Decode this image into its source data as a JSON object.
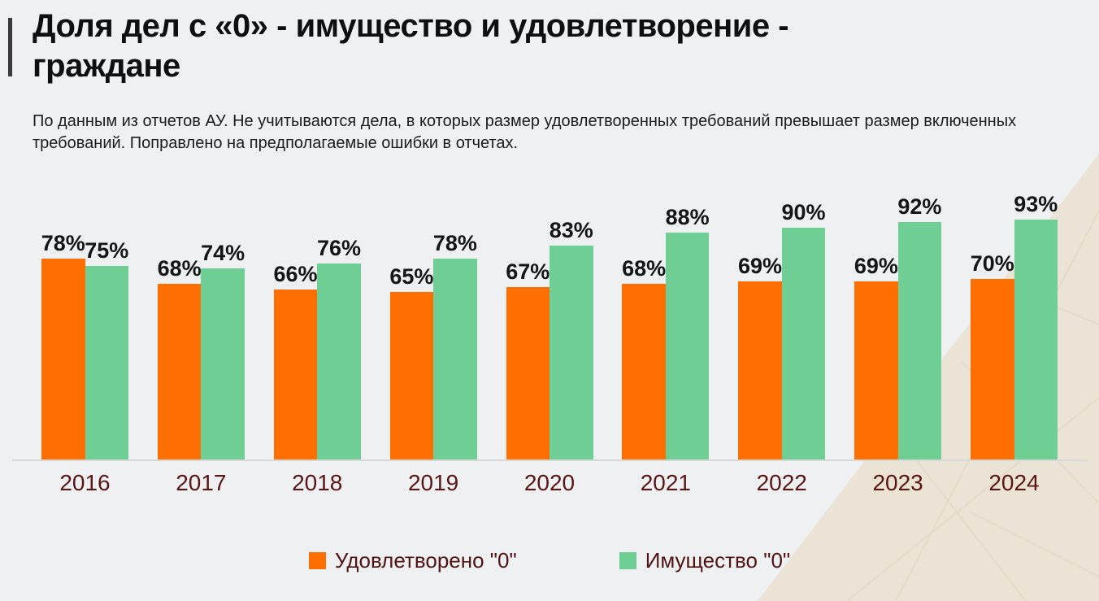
{
  "page": {
    "background": "#eef0f2",
    "accent_bar_color": "#3b3b3b",
    "texture_color": "#eae2d3"
  },
  "header": {
    "title_lines": [
      "Доля дел с «0» - имущество и удовлетворение -",
      "граждане"
    ],
    "subtitle": "По данным из отчетов АУ. Не учитываются дела, в которых размер удовлетворенных требований превышает размер включенных требований. Поправлено на предполагаемые ошибки в отчетах."
  },
  "chart_data": {
    "type": "bar",
    "categories": [
      "2016",
      "2017",
      "2018",
      "2019",
      "2020",
      "2021",
      "2022",
      "2023",
      "2024"
    ],
    "series": [
      {
        "name": "Удовлетворено \"0\"",
        "key": "satisfied",
        "color": "#ff6e01",
        "values": [
          78,
          68,
          66,
          65,
          67,
          68,
          69,
          69,
          70
        ]
      },
      {
        "name": "Имущество \"0\"",
        "key": "property",
        "color": "#6fce94",
        "values": [
          75,
          74,
          76,
          78,
          83,
          88,
          90,
          92,
          93
        ]
      }
    ],
    "value_suffix": "%",
    "ylim": [
      0,
      100
    ],
    "grid": false,
    "legend_position": "bottom",
    "data_labels": "above-bars",
    "axis_label_color": "#5a1616",
    "data_label_color": "#151515"
  }
}
